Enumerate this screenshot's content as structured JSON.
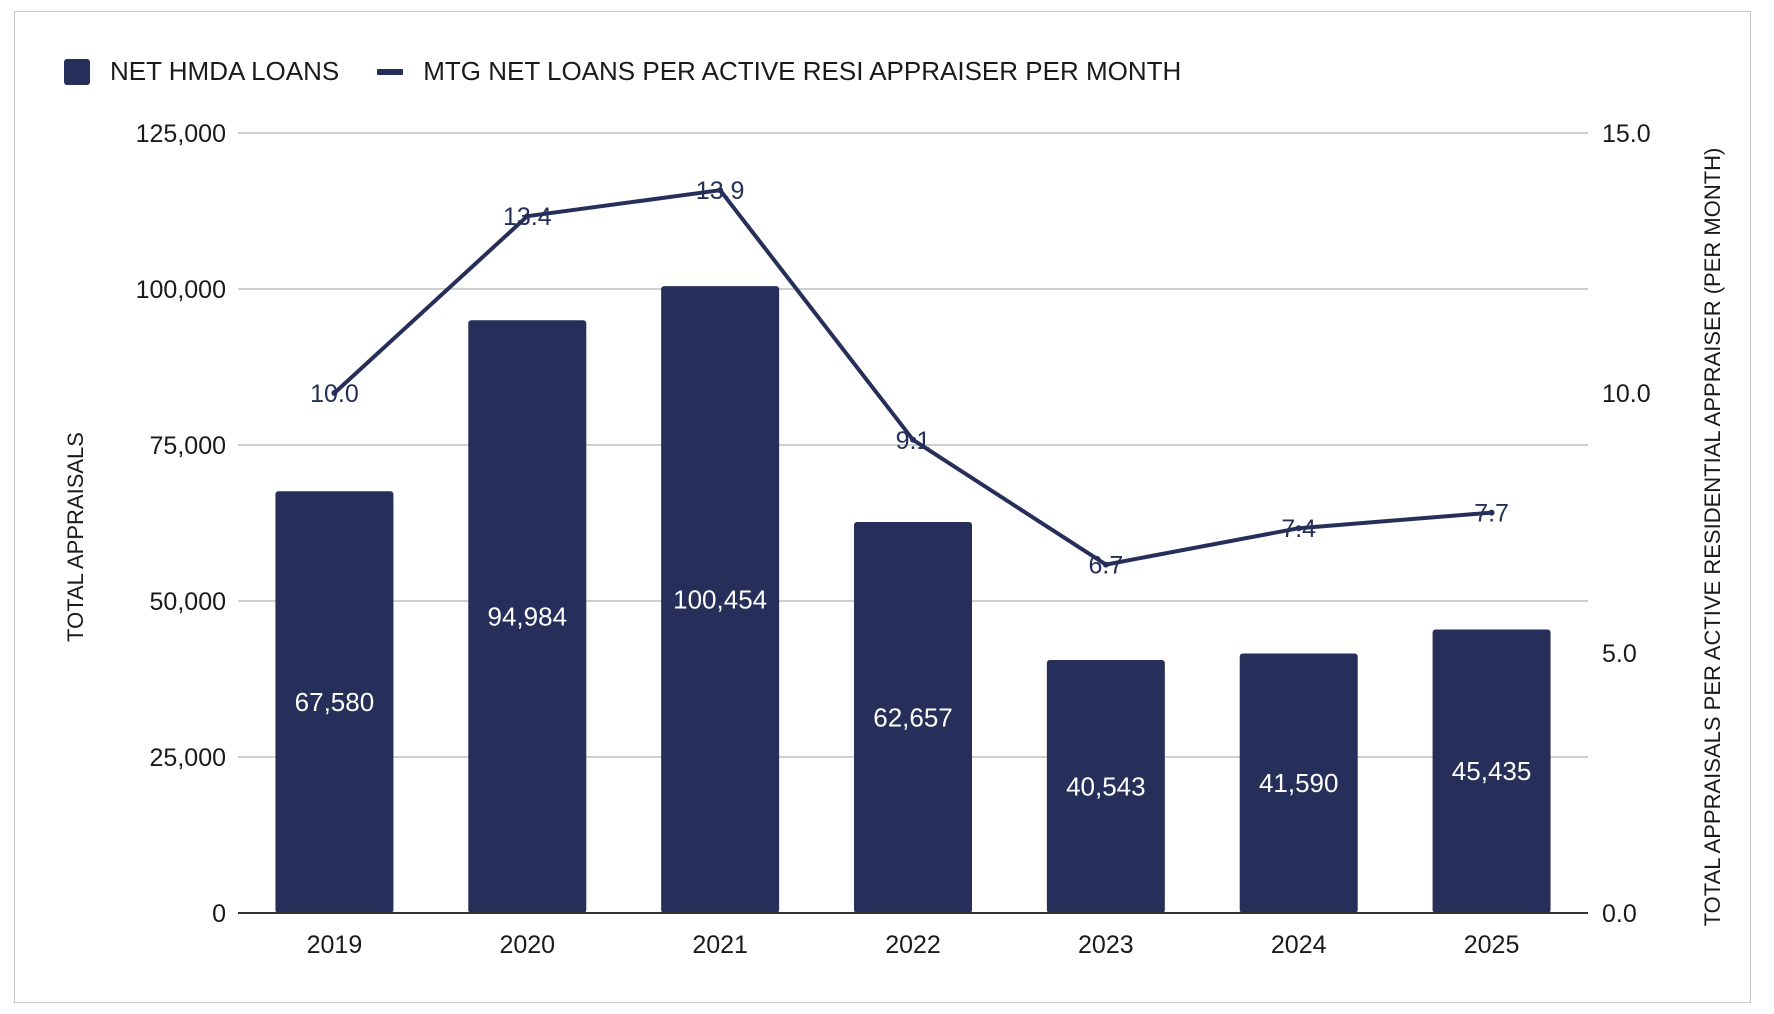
{
  "colors": {
    "series": "#262f59",
    "gridline": "#cfcfcf",
    "axis_line": "#333333",
    "text": "#1a1a1a",
    "bar_label": "#ffffff",
    "line_label": "#262f59",
    "frame": "#c8c8c8"
  },
  "legend": {
    "items": [
      {
        "label": "NET HMDA LOANS",
        "swatch": "bar"
      },
      {
        "label": "MTG NET LOANS PER ACTIVE RESI APPRAISER PER MONTH",
        "swatch": "line"
      }
    ]
  },
  "chart_data": {
    "type": "bar",
    "categories": [
      "2019",
      "2020",
      "2021",
      "2022",
      "2023",
      "2024",
      "2025"
    ],
    "series": [
      {
        "name": "NET HMDA LOANS",
        "type": "bar",
        "axis": "left",
        "values": [
          67580,
          94984,
          100454,
          62657,
          40543,
          41590,
          45435
        ],
        "labels": [
          "67,580",
          "94,984",
          "100,454",
          "62,657",
          "40,543",
          "41,590",
          "45,435"
        ]
      },
      {
        "name": "MTG NET LOANS PER ACTIVE RESI APPRAISER PER MONTH",
        "type": "line",
        "axis": "right",
        "values": [
          10.0,
          13.4,
          13.9,
          9.1,
          6.7,
          7.4,
          7.7
        ],
        "labels": [
          "10.0",
          "13.4",
          "13.9",
          "9.1",
          "6.7",
          "7.4",
          "7.7"
        ]
      }
    ],
    "ylabel": "TOTAL APPRAISALS",
    "ylabel_right": "TOTAL APPRAISALS PER ACTIVE RESIDENTIAL APPRAISER (PER MONTH)",
    "ylim": [
      0,
      125000
    ],
    "ylim_right": [
      0,
      15
    ],
    "yticks": [
      0,
      25000,
      50000,
      75000,
      100000,
      125000
    ],
    "ytick_labels": [
      "0",
      "25,000",
      "50,000",
      "75,000",
      "100,000",
      "125,000"
    ],
    "yticks_right": [
      0,
      5,
      10,
      15
    ],
    "ytick_labels_right": [
      "0.0",
      "5.0",
      "10.0",
      "15.0"
    ],
    "grid": true,
    "legend_position": "top-left"
  }
}
